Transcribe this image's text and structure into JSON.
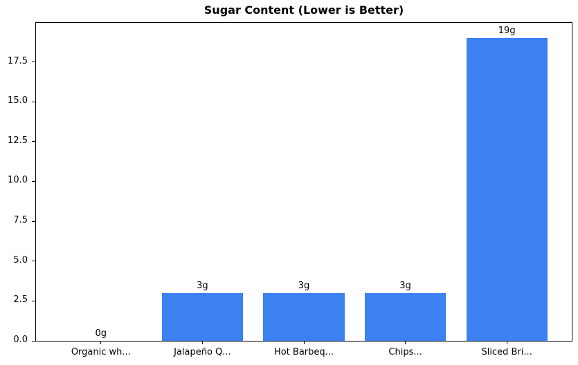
{
  "chart_data": {
    "type": "bar",
    "title": "Sugar Content (Lower is Better)",
    "categories": [
      "Organic wh...",
      "Jalapeño Q...",
      "Hot Barbeq...",
      "Chips...",
      "Sliced Bri..."
    ],
    "values": [
      0,
      3,
      3,
      3,
      19
    ],
    "bar_labels": [
      "0g",
      "3g",
      "3g",
      "3g",
      "19g"
    ],
    "yticks": [
      "0.0",
      "2.5",
      "5.0",
      "7.5",
      "10.0",
      "12.5",
      "15.0",
      "17.5"
    ],
    "ylim": [
      0,
      19.95
    ],
    "xlabel": "",
    "ylabel": "",
    "bar_color": "#3c80f2",
    "axis_color": "#000000",
    "background_color": "#ffffff",
    "grid": false,
    "legend_position": "none"
  }
}
